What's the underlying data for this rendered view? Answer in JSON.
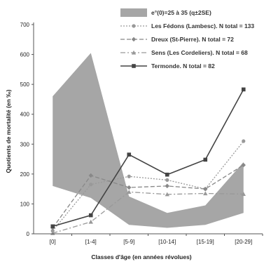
{
  "chart_data": {
    "type": "line",
    "title": "",
    "xlabel": "Classes d'âge (en années révolues)",
    "ylabel": "Quotients de mortalité (en ‰)",
    "categories": [
      "[0]",
      "[1-4]",
      "[5-9]",
      "[10-14]",
      "[15-19]",
      "[20-29]"
    ],
    "ylim": [
      0,
      700
    ],
    "yticks": [
      0,
      100,
      200,
      300,
      400,
      500,
      600,
      700
    ],
    "grid": false,
    "legend_position": "top-right",
    "band": {
      "name": "e°(0)=25 à 35 (q±2SE)",
      "color": "#a6a6a6",
      "upper": [
        460,
        605,
        125,
        70,
        95,
        240
      ],
      "lower": [
        160,
        120,
        30,
        20,
        30,
        70
      ]
    },
    "series": [
      {
        "name": "Les Fédons (Lambesc). N total = 133",
        "values": [
          10,
          165,
          192,
          180,
          150,
          310
        ],
        "color": "#999999",
        "dash": "2,2",
        "marker": "circle"
      },
      {
        "name": "Dreux (St-Pierre). N total = 72",
        "values": [
          20,
          195,
          155,
          160,
          150,
          230
        ],
        "color": "#888888",
        "dash": "6,3",
        "marker": "diamond"
      },
      {
        "name": "Sens (Les Cordeliers). N total = 68",
        "values": [
          2,
          40,
          140,
          132,
          135,
          133
        ],
        "color": "#999999",
        "dash": "7,3,2,3",
        "marker": "triangle"
      },
      {
        "name": "Termonde. N total = 82",
        "values": [
          25,
          62,
          265,
          198,
          248,
          483
        ],
        "color": "#444444",
        "dash": "",
        "marker": "square"
      }
    ]
  }
}
